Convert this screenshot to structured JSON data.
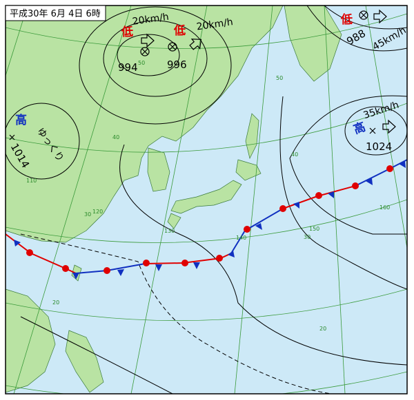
{
  "header": {
    "title": "平成30年 6月 4日 6時"
  },
  "systems": [
    {
      "kind": "低",
      "pressure": 994,
      "speed": "20km/h"
    },
    {
      "kind": "低",
      "pressure": 996,
      "speed": "20km/h"
    },
    {
      "kind": "低",
      "pressure": 988,
      "speed": "45km/h"
    },
    {
      "kind": "高",
      "pressure": 1024,
      "speed": "35km/h"
    },
    {
      "kind": "高",
      "pressure": 1014,
      "speed": "ゆっくり"
    }
  ],
  "grid_labels": [
    50,
    50,
    40,
    40,
    110,
    120,
    130,
    140,
    150,
    160,
    30,
    30,
    20,
    20
  ]
}
